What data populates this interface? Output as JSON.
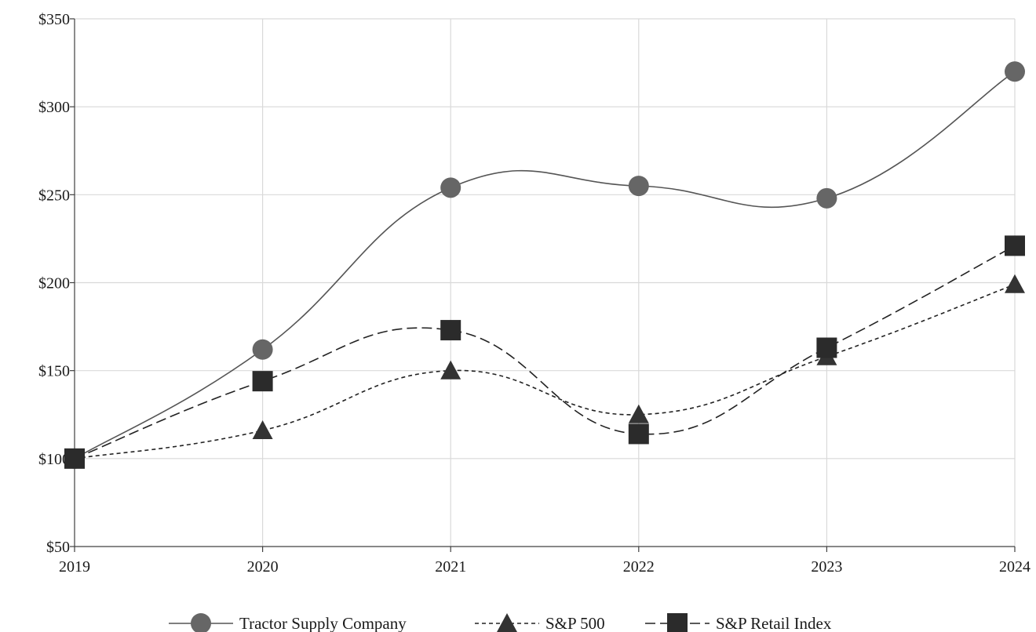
{
  "chart_data": {
    "type": "line",
    "title": "",
    "xlabel": "",
    "ylabel": "",
    "x": [
      "2019",
      "2020",
      "2021",
      "2022",
      "2023",
      "2024"
    ],
    "ylim": [
      50,
      350
    ],
    "yticks": [
      50,
      100,
      150,
      200,
      250,
      300,
      350
    ],
    "ytick_labels": [
      "$50",
      "$100",
      "$150",
      "$200",
      "$250",
      "$300",
      "$350"
    ],
    "grid": true,
    "legend_position": "bottom-center",
    "series": [
      {
        "name": "Tractor Supply Company",
        "values": [
          100,
          162,
          254,
          255,
          248,
          320
        ],
        "marker": "circle",
        "line_style": "solid",
        "color": "#666666",
        "line_color": "#555555"
      },
      {
        "name": "S&P 500",
        "values": [
          100,
          116,
          150,
          125,
          158,
          199
        ],
        "marker": "triangle",
        "line_style": "dotted",
        "color": "#333333",
        "line_color": "#222222"
      },
      {
        "name": "S&P Retail Index",
        "values": [
          100,
          144,
          173,
          114,
          163,
          221
        ],
        "marker": "square",
        "line_style": "dashed",
        "color": "#2b2b2b",
        "line_color": "#222222"
      }
    ]
  }
}
